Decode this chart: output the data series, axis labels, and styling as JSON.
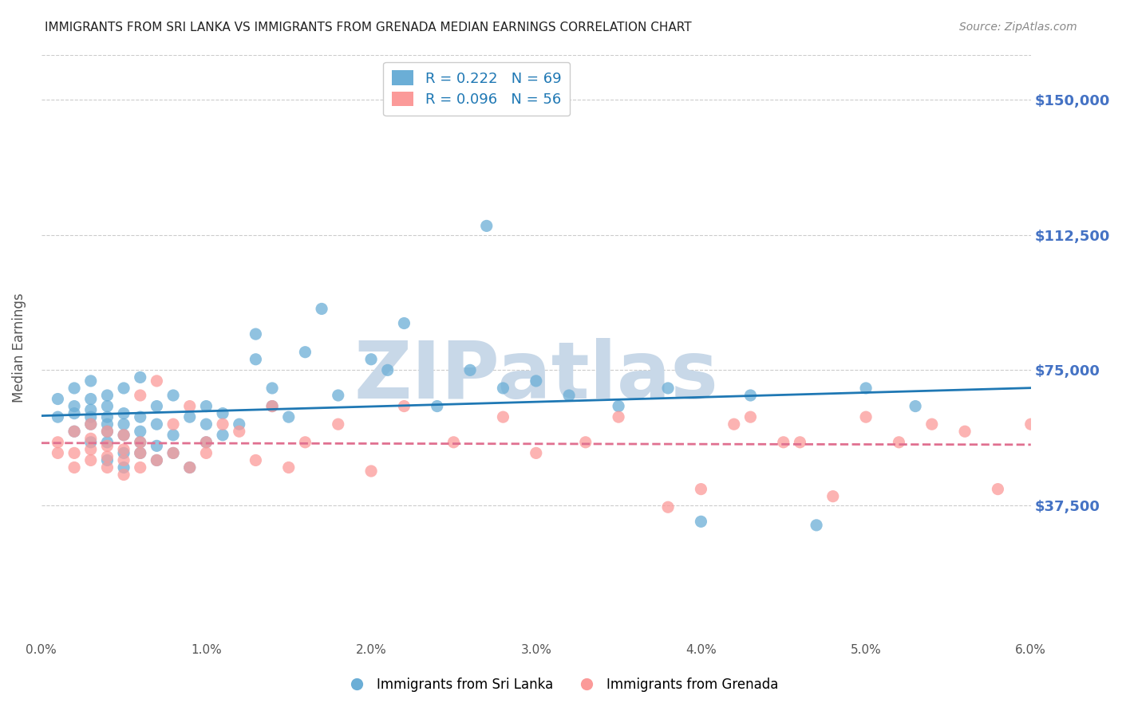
{
  "title": "IMMIGRANTS FROM SRI LANKA VS IMMIGRANTS FROM GRENADA MEDIAN EARNINGS CORRELATION CHART",
  "source_text": "Source: ZipAtlas.com",
  "xlabel": "",
  "ylabel": "Median Earnings",
  "xlim": [
    0.0,
    0.06
  ],
  "ylim": [
    0,
    162500
  ],
  "xtick_labels": [
    "0.0%",
    "1.0%",
    "2.0%",
    "3.0%",
    "4.0%",
    "5.0%",
    "6.0%"
  ],
  "xtick_values": [
    0.0,
    0.01,
    0.02,
    0.03,
    0.04,
    0.05,
    0.06
  ],
  "ytick_labels": [
    "$37,500",
    "$75,000",
    "$112,500",
    "$150,000"
  ],
  "ytick_values": [
    37500,
    75000,
    112500,
    150000
  ],
  "blue_color": "#6baed6",
  "pink_color": "#fb9a99",
  "line_blue": "#1f78b4",
  "line_pink": "#e07090",
  "R_blue": 0.222,
  "N_blue": 69,
  "R_pink": 0.096,
  "N_pink": 56,
  "watermark": "ZIPatlas",
  "watermark_color": "#c8d8e8",
  "legend_label_blue": "Immigrants from Sri Lanka",
  "legend_label_pink": "Immigrants from Grenada",
  "background_color": "#ffffff",
  "grid_color": "#cccccc",
  "title_color": "#222222",
  "axis_label_color": "#555555",
  "tick_label_color_right": "#4472c4",
  "tick_label_color_x": "#555555",
  "blue_scatter_x": [
    0.001,
    0.001,
    0.002,
    0.002,
    0.002,
    0.002,
    0.003,
    0.003,
    0.003,
    0.003,
    0.003,
    0.003,
    0.004,
    0.004,
    0.004,
    0.004,
    0.004,
    0.004,
    0.004,
    0.005,
    0.005,
    0.005,
    0.005,
    0.005,
    0.005,
    0.006,
    0.006,
    0.006,
    0.006,
    0.006,
    0.007,
    0.007,
    0.007,
    0.007,
    0.008,
    0.008,
    0.008,
    0.009,
    0.009,
    0.01,
    0.01,
    0.01,
    0.011,
    0.011,
    0.012,
    0.013,
    0.013,
    0.014,
    0.014,
    0.015,
    0.016,
    0.017,
    0.018,
    0.02,
    0.021,
    0.022,
    0.024,
    0.026,
    0.027,
    0.028,
    0.03,
    0.032,
    0.035,
    0.038,
    0.04,
    0.043,
    0.047,
    0.05,
    0.053
  ],
  "blue_scatter_y": [
    62000,
    67000,
    58000,
    63000,
    65000,
    70000,
    55000,
    60000,
    62000,
    64000,
    67000,
    72000,
    50000,
    55000,
    58000,
    60000,
    62000,
    65000,
    68000,
    48000,
    52000,
    57000,
    60000,
    63000,
    70000,
    52000,
    55000,
    58000,
    62000,
    73000,
    50000,
    54000,
    60000,
    65000,
    52000,
    57000,
    68000,
    48000,
    62000,
    55000,
    60000,
    65000,
    57000,
    63000,
    60000,
    78000,
    85000,
    65000,
    70000,
    62000,
    80000,
    92000,
    68000,
    78000,
    75000,
    88000,
    65000,
    75000,
    115000,
    70000,
    72000,
    68000,
    65000,
    70000,
    33000,
    68000,
    32000,
    70000,
    65000
  ],
  "pink_scatter_x": [
    0.001,
    0.001,
    0.002,
    0.002,
    0.002,
    0.003,
    0.003,
    0.003,
    0.003,
    0.004,
    0.004,
    0.004,
    0.004,
    0.005,
    0.005,
    0.005,
    0.005,
    0.006,
    0.006,
    0.006,
    0.006,
    0.007,
    0.007,
    0.008,
    0.008,
    0.009,
    0.009,
    0.01,
    0.01,
    0.011,
    0.012,
    0.013,
    0.014,
    0.015,
    0.016,
    0.018,
    0.02,
    0.022,
    0.025,
    0.028,
    0.03,
    0.033,
    0.035,
    0.038,
    0.042,
    0.045,
    0.048,
    0.05,
    0.052,
    0.054,
    0.056,
    0.058,
    0.04,
    0.043,
    0.046,
    0.06
  ],
  "pink_scatter_y": [
    52000,
    55000,
    48000,
    52000,
    58000,
    50000,
    53000,
    56000,
    60000,
    48000,
    51000,
    54000,
    58000,
    46000,
    50000,
    53000,
    57000,
    48000,
    52000,
    55000,
    68000,
    50000,
    72000,
    52000,
    60000,
    48000,
    65000,
    52000,
    55000,
    60000,
    58000,
    50000,
    65000,
    48000,
    55000,
    60000,
    47000,
    65000,
    55000,
    62000,
    52000,
    55000,
    62000,
    37000,
    60000,
    55000,
    40000,
    62000,
    55000,
    60000,
    58000,
    42000,
    42000,
    62000,
    55000,
    60000
  ]
}
